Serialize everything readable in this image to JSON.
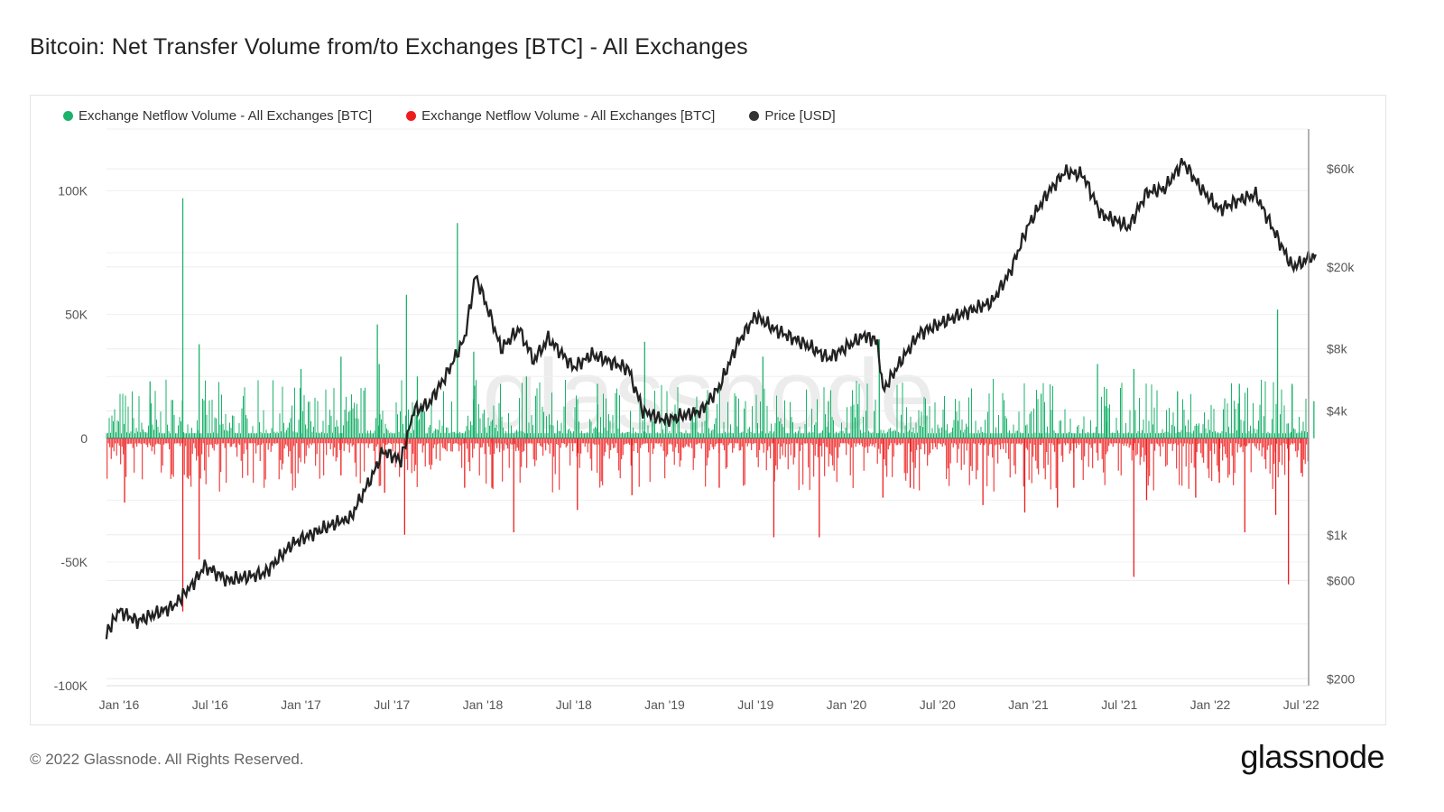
{
  "title": "Bitcoin: Net Transfer Volume from/to Exchanges [BTC] - All Exchanges",
  "footer": "© 2022 Glassnode. All Rights Reserved.",
  "logo_text": "glassnode",
  "watermark": "glassnode",
  "colors": {
    "inflow": "#1bb26b",
    "outflow": "#ee1c1c",
    "price": "#222222"
  },
  "chart_data": {
    "type": "bar+line",
    "title": "Bitcoin: Net Transfer Volume from/to Exchanges [BTC] - All Exchanges",
    "legend": [
      {
        "label": "Exchange Netflow Volume - All Exchanges [BTC]",
        "color": "#1bb26b"
      },
      {
        "label": "Exchange Netflow Volume - All Exchanges [BTC]",
        "color": "#ee1c1c"
      },
      {
        "label": "Price [USD]",
        "color": "#333333"
      }
    ],
    "legend_position": "top-left",
    "x_range": [
      2015.93,
      2022.58
    ],
    "x_ticks": [
      {
        "t": 2016.0,
        "label": "Jan '16"
      },
      {
        "t": 2016.5,
        "label": "Jul '16"
      },
      {
        "t": 2017.0,
        "label": "Jan '17"
      },
      {
        "t": 2017.5,
        "label": "Jul '17"
      },
      {
        "t": 2018.0,
        "label": "Jan '18"
      },
      {
        "t": 2018.5,
        "label": "Jul '18"
      },
      {
        "t": 2019.0,
        "label": "Jan '19"
      },
      {
        "t": 2019.5,
        "label": "Jul '19"
      },
      {
        "t": 2020.0,
        "label": "Jan '20"
      },
      {
        "t": 2020.5,
        "label": "Jul '20"
      },
      {
        "t": 2021.0,
        "label": "Jan '21"
      },
      {
        "t": 2021.5,
        "label": "Jul '21"
      },
      {
        "t": 2022.0,
        "label": "Jan '22"
      },
      {
        "t": 2022.5,
        "label": "Jul '22"
      }
    ],
    "y_left": {
      "range": [
        -100000,
        125000
      ],
      "ticks": [
        {
          "v": 100000,
          "label": "100K"
        },
        {
          "v": 50000,
          "label": "50K"
        },
        {
          "v": 0,
          "label": "0"
        },
        {
          "v": -50000,
          "label": "-50K"
        },
        {
          "v": -100000,
          "label": "-100K"
        }
      ]
    },
    "y_right": {
      "scale": "log",
      "range": [
        185,
        93600
      ],
      "ticks": [
        {
          "v": 60000,
          "label": "$60k"
        },
        {
          "v": 20000,
          "label": "$20k"
        },
        {
          "v": 8000,
          "label": "$8k"
        },
        {
          "v": 4000,
          "label": "$4k"
        },
        {
          "v": 1000,
          "label": "$1k"
        },
        {
          "v": 600,
          "label": "$600"
        },
        {
          "v": 200,
          "label": "$200"
        }
      ]
    },
    "netflow_spikes": [
      [
        2016.35,
        97000
      ],
      [
        2016.35,
        -70000
      ],
      [
        2016.44,
        38000
      ],
      [
        2016.44,
        -49000
      ],
      [
        2016.03,
        -26000
      ],
      [
        2016.17,
        23000
      ],
      [
        2017.0,
        28000
      ],
      [
        2017.22,
        33000
      ],
      [
        2017.22,
        -15000
      ],
      [
        2017.42,
        46000
      ],
      [
        2017.43,
        30000
      ],
      [
        2017.46,
        -22000
      ],
      [
        2017.58,
        58000
      ],
      [
        2017.57,
        -39000
      ],
      [
        2017.64,
        25000
      ],
      [
        2017.86,
        87000
      ],
      [
        2017.9,
        -20000
      ],
      [
        2017.95,
        35000
      ],
      [
        2018.05,
        -20000
      ],
      [
        2018.17,
        -38000
      ],
      [
        2018.24,
        25000
      ],
      [
        2018.52,
        -29000
      ],
      [
        2018.63,
        22000
      ],
      [
        2018.82,
        -23000
      ],
      [
        2018.89,
        39000
      ],
      [
        2019.3,
        -20000
      ],
      [
        2019.54,
        33000
      ],
      [
        2019.6,
        -40000
      ],
      [
        2019.85,
        -40000
      ],
      [
        2019.9,
        15000
      ],
      [
        2020.18,
        40000
      ],
      [
        2020.2,
        -24000
      ],
      [
        2020.35,
        -20000
      ],
      [
        2020.75,
        -27000
      ],
      [
        2020.98,
        -30000
      ],
      [
        2021.07,
        18000
      ],
      [
        2021.16,
        -28000
      ],
      [
        2021.25,
        -20000
      ],
      [
        2021.38,
        30000
      ],
      [
        2021.43,
        20000
      ],
      [
        2021.58,
        28000
      ],
      [
        2021.58,
        -56000
      ],
      [
        2021.65,
        -25000
      ],
      [
        2021.82,
        19000
      ],
      [
        2021.92,
        -24000
      ],
      [
        2022.05,
        -18000
      ],
      [
        2022.16,
        22000
      ],
      [
        2022.19,
        -38000
      ],
      [
        2022.36,
        -31000
      ],
      [
        2022.37,
        52000
      ],
      [
        2022.43,
        -59000
      ],
      [
        2022.45,
        22000
      ],
      [
        2022.5,
        -14000
      ],
      [
        2022.57,
        15000
      ]
    ],
    "price_usd": [
      [
        2015.93,
        330
      ],
      [
        2016.0,
        430
      ],
      [
        2016.1,
        380
      ],
      [
        2016.3,
        450
      ],
      [
        2016.42,
        600
      ],
      [
        2016.47,
        706
      ],
      [
        2016.6,
        600
      ],
      [
        2016.8,
        650
      ],
      [
        2016.95,
        900
      ],
      [
        2017.05,
        1000
      ],
      [
        2017.2,
        1150
      ],
      [
        2017.27,
        1200
      ],
      [
        2017.4,
        2000
      ],
      [
        2017.45,
        2550
      ],
      [
        2017.55,
        2300
      ],
      [
        2017.62,
        4000
      ],
      [
        2017.7,
        4300
      ],
      [
        2017.8,
        6000
      ],
      [
        2017.9,
        9000
      ],
      [
        2017.96,
        18300
      ],
      [
        2018.05,
        11000
      ],
      [
        2018.1,
        8000
      ],
      [
        2018.2,
        10000
      ],
      [
        2018.28,
        7000
      ],
      [
        2018.36,
        9000
      ],
      [
        2018.5,
        6500
      ],
      [
        2018.6,
        7500
      ],
      [
        2018.8,
        6400
      ],
      [
        2018.88,
        4000
      ],
      [
        2019.0,
        3600
      ],
      [
        2019.2,
        4000
      ],
      [
        2019.3,
        5200
      ],
      [
        2019.4,
        8500
      ],
      [
        2019.5,
        11600
      ],
      [
        2019.6,
        10000
      ],
      [
        2019.8,
        8200
      ],
      [
        2019.9,
        7200
      ],
      [
        2020.1,
        9300
      ],
      [
        2020.17,
        8700
      ],
      [
        2020.2,
        5000
      ],
      [
        2020.3,
        7000
      ],
      [
        2020.4,
        9500
      ],
      [
        2020.6,
        11500
      ],
      [
        2020.8,
        13500
      ],
      [
        2020.9,
        19000
      ],
      [
        2021.0,
        32000
      ],
      [
        2021.1,
        45000
      ],
      [
        2021.2,
        58000
      ],
      [
        2021.3,
        56000
      ],
      [
        2021.4,
        36000
      ],
      [
        2021.5,
        33000
      ],
      [
        2021.55,
        31000
      ],
      [
        2021.65,
        46000
      ],
      [
        2021.75,
        48000
      ],
      [
        2021.85,
        65000
      ],
      [
        2021.95,
        48000
      ],
      [
        2022.05,
        38000
      ],
      [
        2022.15,
        42000
      ],
      [
        2022.25,
        45000
      ],
      [
        2022.35,
        30000
      ],
      [
        2022.45,
        20000
      ],
      [
        2022.5,
        21000
      ],
      [
        2022.58,
        23000
      ]
    ]
  }
}
